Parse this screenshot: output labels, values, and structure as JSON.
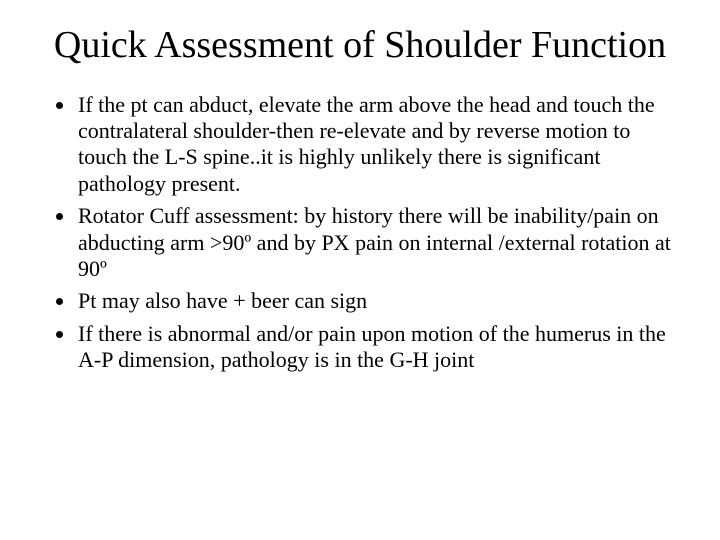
{
  "title": "Quick Assessment of Shoulder Function",
  "bullets": [
    "If the pt can abduct, elevate the arm above the head and touch the contralateral shoulder-then re-elevate and by reverse motion to touch the L-S spine..it is highly unlikely there is significant pathology present.",
    "Rotator Cuff assessment: by history there will be inability/pain on abducting arm >90º and by PX pain on internal /external rotation at 90º",
    "Pt may also have + beer can sign",
    "If there is abnormal and/or pain upon motion of the humerus in the A-P dimension, pathology is in the G-H joint"
  ],
  "colors": {
    "background": "#ffffff",
    "text": "#000000"
  },
  "typography": {
    "title_fontsize": 38,
    "body_fontsize": 22,
    "font_family": "Times New Roman"
  }
}
